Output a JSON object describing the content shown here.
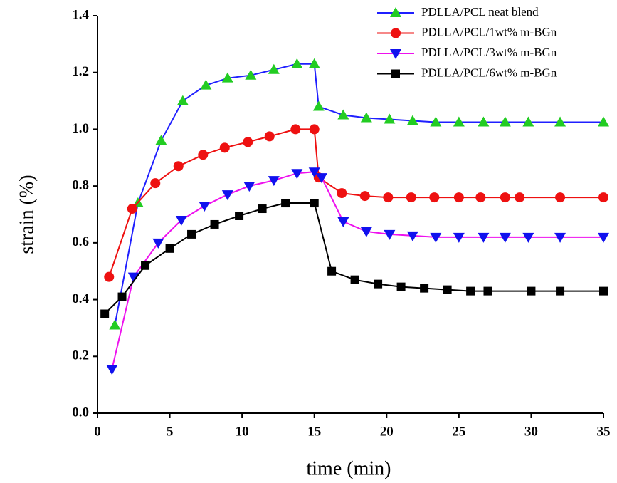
{
  "chart_data": {
    "type": "line",
    "xlabel": "time (min)",
    "ylabel": "strain (%)",
    "xlim": [
      0,
      35
    ],
    "xticks": [
      0,
      5,
      10,
      15,
      20,
      25,
      30,
      35
    ],
    "ylim": [
      0,
      1.4
    ],
    "yticks": [
      {
        "value": 0,
        "label": "0.0"
      },
      {
        "value": 0.2,
        "label": "0.2"
      },
      {
        "value": 0.4,
        "label": "0.4"
      },
      {
        "value": 0.6,
        "label": "0.6"
      },
      {
        "value": 0.8,
        "label": "0.8"
      },
      {
        "value": 1.0,
        "label": "1.0"
      },
      {
        "value": 1.2,
        "label": "1.2"
      },
      {
        "value": 1.4,
        "label": "1.4"
      }
    ],
    "legend": "upper right",
    "series": [
      {
        "name": "PDLLA/PCL neat blend",
        "color": "#1f1fff",
        "marker_color": "#22cc22",
        "marker": "triangle-up",
        "x": [
          1.2,
          2.8,
          4.4,
          5.9,
          7.5,
          9.0,
          10.6,
          12.2,
          13.8,
          15.0,
          15.3,
          17.0,
          18.6,
          20.2,
          21.8,
          23.4,
          25.0,
          26.7,
          28.2,
          29.8,
          32.0,
          35.0
        ],
        "values": [
          0.31,
          0.74,
          0.96,
          1.1,
          1.155,
          1.18,
          1.19,
          1.21,
          1.23,
          1.23,
          1.08,
          1.05,
          1.04,
          1.035,
          1.03,
          1.025,
          1.025,
          1.025,
          1.025,
          1.025,
          1.025,
          1.025
        ]
      },
      {
        "name": "PDLLA/PCL/1wt% m-BGn",
        "color": "#ee1111",
        "marker_color": "#ee1111",
        "marker": "circle",
        "x": [
          0.8,
          2.4,
          4.0,
          5.6,
          7.3,
          8.8,
          10.4,
          11.9,
          13.7,
          15.0,
          15.3,
          16.9,
          18.5,
          20.1,
          21.7,
          23.3,
          25.0,
          26.5,
          28.2,
          29.2,
          32.0,
          35.0
        ],
        "values": [
          0.48,
          0.72,
          0.81,
          0.87,
          0.91,
          0.935,
          0.955,
          0.975,
          1.0,
          1.0,
          0.83,
          0.775,
          0.765,
          0.76,
          0.76,
          0.76,
          0.76,
          0.76,
          0.76,
          0.76,
          0.76,
          0.76
        ]
      },
      {
        "name": "PDLLA/PCL/3wt% m-BGn",
        "color": "#ee11ee",
        "marker_color": "#1111ee",
        "marker": "triangle-down",
        "x": [
          1.0,
          2.5,
          4.2,
          5.8,
          7.4,
          9.0,
          10.5,
          12.2,
          13.8,
          15.0,
          15.5,
          17.0,
          18.6,
          20.2,
          21.8,
          23.4,
          25.0,
          26.7,
          28.2,
          29.8,
          32.0,
          35.0
        ],
        "values": [
          0.155,
          0.48,
          0.6,
          0.68,
          0.73,
          0.77,
          0.8,
          0.82,
          0.845,
          0.85,
          0.83,
          0.675,
          0.64,
          0.63,
          0.625,
          0.62,
          0.62,
          0.62,
          0.62,
          0.62,
          0.62,
          0.62
        ]
      },
      {
        "name": "PDLLA/PCL/6wt% m-BGn",
        "color": "#000000",
        "marker_color": "#000000",
        "marker": "square",
        "x": [
          0.5,
          1.7,
          3.3,
          5.0,
          6.5,
          8.1,
          9.8,
          11.4,
          13.0,
          15.0,
          16.2,
          17.8,
          19.4,
          21.0,
          22.6,
          24.2,
          25.8,
          27.0,
          30.0,
          32.0,
          35.0
        ],
        "values": [
          0.35,
          0.41,
          0.52,
          0.58,
          0.63,
          0.665,
          0.695,
          0.72,
          0.74,
          0.74,
          0.5,
          0.47,
          0.455,
          0.445,
          0.44,
          0.435,
          0.43,
          0.43,
          0.43,
          0.43,
          0.43
        ]
      }
    ]
  }
}
